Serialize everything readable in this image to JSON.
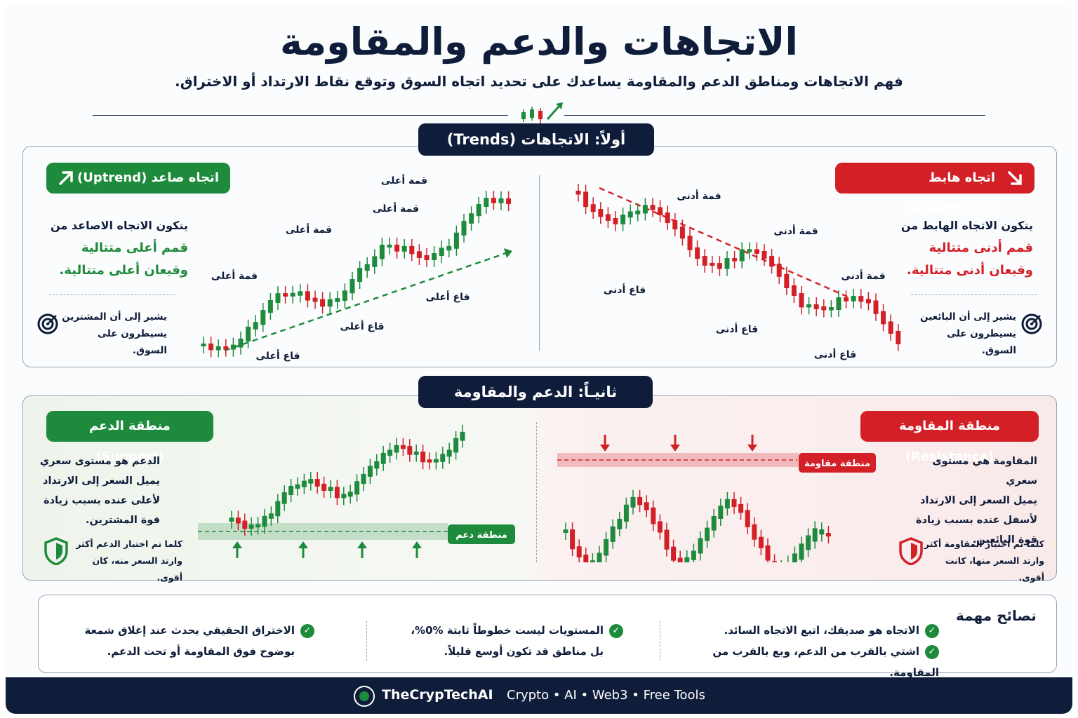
{
  "header": {
    "title": "الاتجاهات والدعم والمقاومة",
    "subtitle": "فهم الاتجاهات ومناطق الدعم والمقاومة يساعدك على تحديد اتجاه السوق وتوقع نقاط الارتداد أو الاختراق."
  },
  "section1": {
    "pill": "أولاً: الاتجاهات (Trends)",
    "uptrend": {
      "badge": "اتجاه صاعد (Uptrend)",
      "line1": "يتكون الاتجاه الاصاعد من",
      "line2": "قمم أعلى متتالية",
      "line3": "وقيعان أعلى متتالية.",
      "note1": "يشير إلى أن المشترين",
      "note2": "يسيطرون على السوق.",
      "icon": "arrow-up-right-icon",
      "note_icon": "target-icon",
      "labels": {
        "peak1": "قمة أعلى",
        "peak2": "قمة أعلى",
        "peak3": "قمة أعلى",
        "peak4": "قمة أعلى",
        "trough1": "قاع أعلى",
        "trough2": "قاع أعلى",
        "trough3": "قاع أعلى"
      }
    },
    "downtrend": {
      "badge": "اتجاه هابط (Downtrend)",
      "line1": "يتكون الاتجاه الهابط من",
      "line2": "قمم أدنى متتالية",
      "line3": "وقيعان أدنى متتالية.",
      "note1": "يشير إلى أن البائعين",
      "note2": "يسيطرون على السوق.",
      "icon": "arrow-down-right-icon",
      "note_icon": "target-icon",
      "labels": {
        "peak1": "قمة أدنى",
        "peak2": "قمة أدنى",
        "peak3": "قمة أدنى",
        "trough1": "قاع أدنى",
        "trough2": "قاع أدنى",
        "trough3": "قاع أدنى"
      }
    }
  },
  "section2": {
    "pill": "ثانيـاً: الدعم والمقاومة",
    "support": {
      "badge": "منطقة الدعم (Support)",
      "line1": "الدعم هو مستوى سعري",
      "line2": "يميل السعر إلى الارتداد",
      "line3": "لأعلى عنده بسبب زيادة",
      "line4": "قوة المشترين.",
      "note1": "كلما تم اختبار الدعم أكثر",
      "note2": "وارتد السعر منه، كان أقوى.",
      "zone_label": "منطقة دعم",
      "note_icon": "shield-icon"
    },
    "resistance": {
      "badge": "منطقة المقاومة (Resistance)",
      "line1": "المقاومة هي مستوى سعري",
      "line2": "يميل السعر إلى الارتداد",
      "line3": "لأسفل عنده بسبب زيادة",
      "line4": "قوة البائعين.",
      "note1": "كلما تم اختبار المقاومة أكثر",
      "note2": "وارتد السعر منها، كانت أقوى.",
      "zone_label": "منطقة مقاومة",
      "note_icon": "shield-icon"
    }
  },
  "tips": {
    "title": "نصائح مهمة",
    "t1": "الاتجاه هو صديقك، اتبع الاتجاه السائد.",
    "t2": "اشتي بالقرب من الدعم، وبع بالقرب من المقاومة.",
    "t3a": "المستويات ليست خطوطاً ثابتة %0%،",
    "t3b": "بل مناطق قد تكون أوسع قليلاً.",
    "t4a": "الاختراق الحقيقي يحدث عند إغلاق شمعة",
    "t4b": "بوضوح فوق المقاومة أو تحت الدعم."
  },
  "footer": {
    "brand": "TheCrypTechAI",
    "tagline": "Crypto • AI • Web3 • Free Tools"
  },
  "colors": {
    "navy": "#0f1d3a",
    "green": "#1e8a3c",
    "red": "#d32027"
  }
}
